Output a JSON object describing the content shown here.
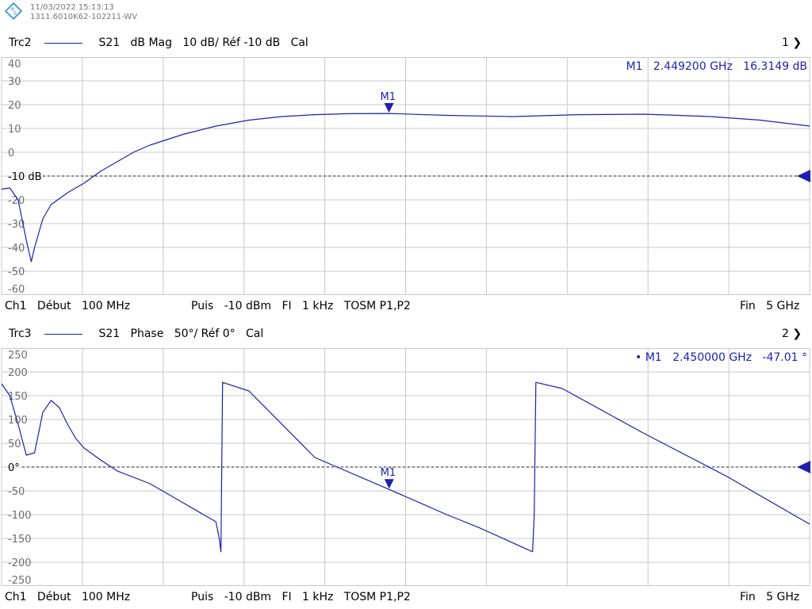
{
  "header": {
    "datetime": "11/03/2022 15:13:13",
    "instrument": "1311.6010K62-102211-WV"
  },
  "colors": {
    "trace": "#1f1fb0",
    "grid": "#c8c8c8",
    "tick_text": "#6f6f6f",
    "ref_line": "#222222"
  },
  "icons": {
    "logo": "rohde-schwarz-logo-icon",
    "marker": "marker-triangle-icon",
    "ref": "ref-level-arrow-icon"
  },
  "trace2": {
    "name": "Trc2",
    "param": "S21",
    "format": "dB Mag",
    "scale": "10 dB/",
    "ref": "Réf -10 dB",
    "cal": "Cal",
    "channel": "1",
    "marker_readout": {
      "name": "M1",
      "freq": "2.449200  GHz",
      "value": "16.3149  dB"
    },
    "ref_label": "-10 dB",
    "marker_label": "M1"
  },
  "trace3": {
    "name": "Trc3",
    "param": "S21",
    "format": "Phase",
    "scale": "50°/",
    "ref": "Réf 0°",
    "cal": "Cal",
    "channel": "2",
    "marker_readout": {
      "bullet": "•",
      "name": "M1",
      "freq": "2.450000  GHz",
      "value": "-47.01  °"
    },
    "ref_label": "0°",
    "marker_label": "M1"
  },
  "footer": {
    "ch": "Ch1",
    "start_label": "Début",
    "start": "100 MHz",
    "pwr_label": "Puis",
    "pwr": "-10 dBm",
    "if_label": "FI",
    "if": "1 kHz",
    "cal_type": "TOSM P1,P2",
    "stop_label": "Fin",
    "stop": "5 GHz"
  },
  "chart_data": [
    {
      "type": "line",
      "title": "",
      "xlabel": "",
      "ylabel": "",
      "xlim": [
        0.1,
        5.0
      ],
      "ylim": [
        -60,
        40
      ],
      "grid": true,
      "y_ticks": [
        "40",
        "30",
        "20",
        "10",
        "0",
        "-10 dB",
        "-20",
        "-30",
        "-40",
        "-50",
        "-60"
      ],
      "ref_level": -10,
      "marker": {
        "name": "M1",
        "x": 2.4492,
        "y": 16.3149
      },
      "series": [
        {
          "x": [
            0.1,
            0.15,
            0.2,
            0.25,
            0.28,
            0.3,
            0.35,
            0.4,
            0.45,
            0.5,
            0.6,
            0.7,
            0.8,
            0.9,
            1.0,
            1.2,
            1.4,
            1.6,
            1.8,
            2.0,
            2.2,
            2.449,
            2.8,
            3.2,
            3.6,
            4.0,
            4.4,
            4.7,
            5.0
          ],
          "y": [
            -15.5,
            -15.0,
            -20,
            -37,
            -46,
            -40,
            -28,
            -22,
            -19.5,
            -17,
            -13,
            -8,
            -4,
            0,
            3,
            7.5,
            11,
            13.5,
            15,
            15.8,
            16.2,
            16.3,
            15.5,
            15.0,
            15.8,
            16.0,
            15.0,
            13.5,
            11.0
          ]
        }
      ]
    },
    {
      "type": "line",
      "title": "",
      "xlabel": "",
      "ylabel": "",
      "xlim": [
        0.1,
        5.0
      ],
      "ylim": [
        -250,
        250
      ],
      "grid": true,
      "y_ticks": [
        "250",
        "200",
        "150",
        "100",
        "50",
        "0°",
        "-50",
        "-100",
        "-150",
        "-200",
        "-250"
      ],
      "ref_level": 0,
      "marker": {
        "name": "M1",
        "x": 2.45,
        "y": -47.01
      },
      "series": [
        {
          "x": [
            0.1,
            0.15,
            0.2,
            0.25,
            0.3,
            0.35,
            0.4,
            0.45,
            0.5,
            0.55,
            0.6,
            0.7,
            0.8,
            1.0,
            1.2,
            1.4,
            1.42,
            1.43,
            1.44,
            1.6,
            2.0,
            2.45,
            2.8,
            3.0,
            3.32,
            3.33,
            3.34,
            3.5,
            4.0,
            4.5,
            5.0
          ],
          "y": [
            175,
            150,
            90,
            25,
            30,
            115,
            140,
            125,
            90,
            60,
            40,
            15,
            -8,
            -35,
            -75,
            -115,
            -150,
            -178,
            178,
            160,
            20,
            -47,
            -100,
            -128,
            -178,
            -100,
            178,
            165,
            70,
            -20,
            -120
          ]
        }
      ]
    }
  ]
}
